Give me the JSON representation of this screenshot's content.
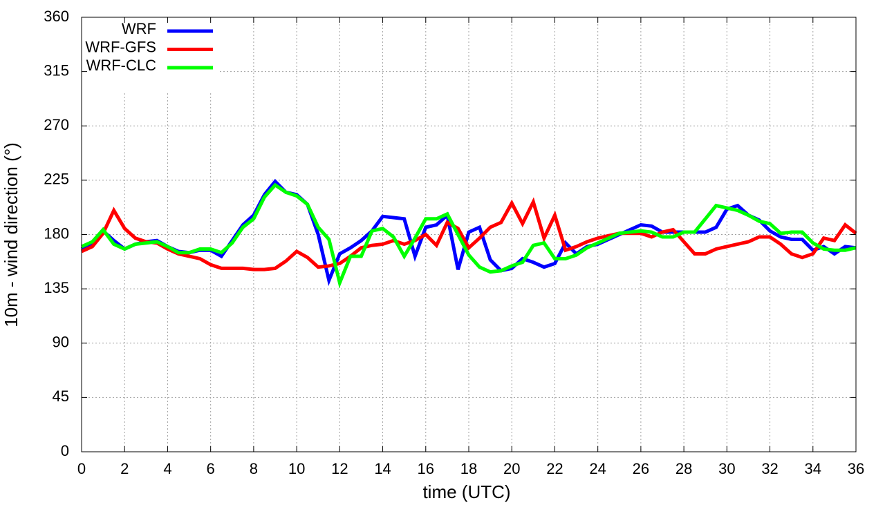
{
  "chart_data": {
    "type": "line",
    "xlabel": "time (UTC)",
    "ylabel": "10m - wind direction (°)",
    "x": [
      0,
      0.5,
      1,
      1.5,
      2,
      2.5,
      3,
      3.5,
      4,
      4.5,
      5,
      5.5,
      6,
      6.5,
      7,
      7.5,
      8,
      8.5,
      9,
      9.5,
      10,
      10.5,
      11,
      11.5,
      12,
      12.5,
      13,
      13.5,
      14,
      14.5,
      15,
      15.5,
      16,
      16.5,
      17,
      17.5,
      18,
      18.5,
      19,
      19.5,
      20,
      20.5,
      21,
      21.5,
      22,
      22.5,
      23,
      23.5,
      24,
      24.5,
      25,
      25.5,
      26,
      26.5,
      27,
      27.5,
      28,
      28.5,
      29,
      29.5,
      30,
      30.5,
      31,
      31.5,
      32,
      32.5,
      33,
      33.5,
      34,
      34.5,
      35,
      35.5,
      36
    ],
    "series": [
      {
        "name": "WRF",
        "color": "#0000ff",
        "values": [
          168,
          172,
          183,
          175,
          168,
          172,
          174,
          175,
          170,
          166,
          165,
          167,
          167,
          162,
          175,
          188,
          196,
          213,
          224,
          215,
          213,
          205,
          180,
          142,
          164,
          169,
          175,
          183,
          195,
          194,
          193,
          162,
          186,
          188,
          196,
          151,
          182,
          186,
          159,
          150,
          152,
          160,
          157,
          153,
          156,
          173,
          164,
          170,
          172,
          176,
          180,
          184,
          188,
          187,
          182,
          182,
          182,
          182,
          182,
          186,
          201,
          204,
          196,
          192,
          183,
          178,
          176,
          176,
          167,
          170,
          164,
          170,
          169
        ]
      },
      {
        "name": "WRF-GFS",
        "color": "#ff0000",
        "values": [
          166,
          170,
          181,
          200,
          185,
          177,
          174,
          173,
          168,
          164,
          162,
          160,
          155,
          152,
          152,
          152,
          151,
          151,
          152,
          158,
          166,
          161,
          153,
          154,
          156,
          162,
          169,
          171,
          172,
          175,
          172,
          175,
          180,
          171,
          190,
          185,
          169,
          177,
          186,
          190,
          206,
          189,
          207,
          177,
          196,
          167,
          170,
          174,
          177,
          179,
          181,
          181,
          181,
          178,
          182,
          184,
          174,
          164,
          164,
          168,
          170,
          172,
          174,
          178,
          178,
          172,
          164,
          161,
          164,
          177,
          175,
          188,
          181
        ]
      },
      {
        "name": "WRF-CLC",
        "color": "#00ff00",
        "values": [
          170,
          174,
          184,
          172,
          168,
          172,
          173,
          174,
          170,
          165,
          165,
          168,
          168,
          165,
          173,
          186,
          193,
          211,
          221,
          215,
          212,
          205,
          186,
          176,
          140,
          162,
          162,
          183,
          185,
          178,
          162,
          177,
          193,
          193,
          197,
          180,
          163,
          153,
          149,
          150,
          154,
          157,
          171,
          173,
          160,
          160,
          163,
          169,
          173,
          177,
          181,
          182,
          183,
          182,
          178,
          178,
          182,
          182,
          193,
          204,
          202,
          200,
          196,
          191,
          189,
          181,
          182,
          182,
          173,
          168,
          167,
          167,
          169
        ]
      }
    ],
    "xlim": [
      0,
      36
    ],
    "xticks": [
      0,
      2,
      4,
      6,
      8,
      10,
      12,
      14,
      16,
      18,
      20,
      22,
      24,
      26,
      28,
      30,
      32,
      34,
      36
    ],
    "ylim": [
      0,
      360
    ],
    "yticks": [
      0,
      45,
      90,
      135,
      180,
      225,
      270,
      315,
      360
    ],
    "grid": true,
    "legend": "upper left"
  }
}
